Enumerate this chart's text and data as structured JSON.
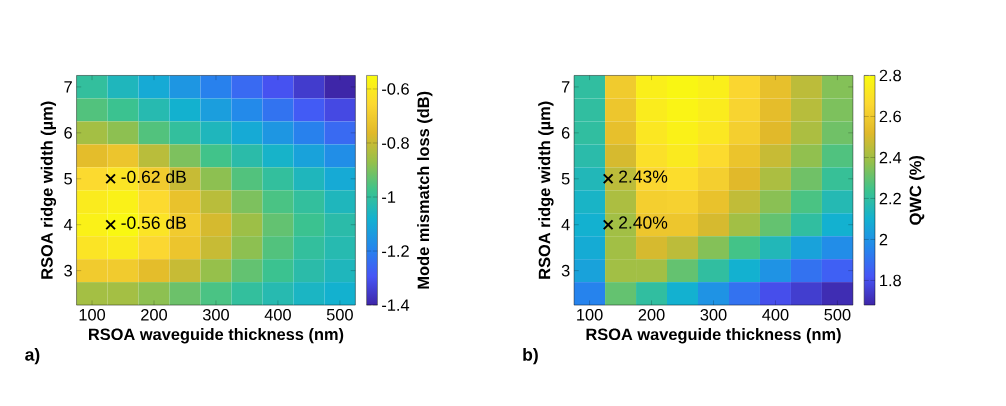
{
  "chart_data": [
    {
      "type": "heatmap",
      "xlabel": "RSOA waveguide thickness (nm)",
      "ylabel": "RSOA ridge width (µm)",
      "clabel": "Mode mismatch loss (dB)",
      "categories": [
        "100",
        null,
        "200",
        null,
        "300",
        null,
        "400",
        null,
        "500"
      ],
      "y_categories": [
        "7",
        null,
        "6",
        null,
        "5",
        null,
        "4",
        null,
        "3",
        null
      ],
      "cells": [
        [
          -1.0,
          -1.05,
          -1.1,
          -1.15,
          -1.2,
          -1.25,
          -1.3,
          -1.35,
          -1.4
        ],
        [
          -0.95,
          -0.98,
          -1.03,
          -1.08,
          -1.13,
          -1.18,
          -1.23,
          -1.28,
          -1.32
        ],
        [
          -0.85,
          -0.88,
          -0.95,
          -1.0,
          -1.05,
          -1.1,
          -1.15,
          -1.2,
          -1.25
        ],
        [
          -0.75,
          -0.72,
          -0.82,
          -0.9,
          -0.97,
          -1.02,
          -1.07,
          -1.12,
          -1.17
        ],
        [
          -0.65,
          -0.62,
          -0.7,
          -0.8,
          -0.88,
          -0.95,
          -1.0,
          -1.05,
          -1.1
        ],
        [
          -0.6,
          -0.58,
          -0.65,
          -0.73,
          -0.82,
          -0.9,
          -0.96,
          -1.0,
          -1.05
        ],
        [
          -0.58,
          -0.56,
          -0.62,
          -0.7,
          -0.78,
          -0.86,
          -0.93,
          -0.98,
          -1.02
        ],
        [
          -0.62,
          -0.6,
          -0.66,
          -0.72,
          -0.8,
          -0.88,
          -0.95,
          -1.0,
          -1.03
        ],
        [
          -0.7,
          -0.7,
          -0.75,
          -0.8,
          -0.87,
          -0.93,
          -0.98,
          -1.02,
          -1.05
        ],
        [
          -0.85,
          -0.85,
          -0.88,
          -0.92,
          -0.96,
          -1.0,
          -1.03,
          -1.06,
          -1.08
        ]
      ],
      "clim": [
        -1.4,
        -0.55
      ],
      "cticks": [
        -1.4,
        -1.2,
        -1,
        -0.8,
        -0.6
      ],
      "annotations": [
        "-0.62 dB",
        "-0.56 dB",
        "a)"
      ]
    },
    {
      "type": "heatmap",
      "xlabel": "RSOA waveguide thickness (nm)",
      "ylabel": "RSOA ridge width (µm)",
      "clabel": "QWC (%)",
      "categories": [
        "100",
        null,
        "200",
        null,
        "300",
        null,
        "400",
        null,
        "500"
      ],
      "y_categories": [
        "7",
        null,
        "6",
        null,
        "5",
        null,
        "4",
        null,
        "3",
        null
      ],
      "cells": [
        [
          2.2,
          2.6,
          2.75,
          2.78,
          2.75,
          2.65,
          2.55,
          2.45,
          2.35
        ],
        [
          2.2,
          2.58,
          2.74,
          2.77,
          2.74,
          2.64,
          2.54,
          2.44,
          2.34
        ],
        [
          2.2,
          2.55,
          2.72,
          2.76,
          2.72,
          2.62,
          2.52,
          2.42,
          2.32
        ],
        [
          2.18,
          2.5,
          2.69,
          2.73,
          2.67,
          2.57,
          2.47,
          2.37,
          2.27
        ],
        [
          2.15,
          2.45,
          2.65,
          2.68,
          2.62,
          2.52,
          2.42,
          2.32,
          2.22
        ],
        [
          2.12,
          2.42,
          2.62,
          2.63,
          2.56,
          2.46,
          2.36,
          2.26,
          2.16
        ],
        [
          2.1,
          2.4,
          2.58,
          2.58,
          2.5,
          2.4,
          2.3,
          2.2,
          2.1
        ],
        [
          2.08,
          2.4,
          2.5,
          2.45,
          2.35,
          2.25,
          2.15,
          2.05,
          1.98
        ],
        [
          2.05,
          2.4,
          2.4,
          2.3,
          2.2,
          2.1,
          2.0,
          1.9,
          1.85
        ],
        [
          1.95,
          2.3,
          2.2,
          2.1,
          2.0,
          1.9,
          1.8,
          1.75,
          1.7
        ]
      ],
      "clim": [
        1.68,
        2.8
      ],
      "cticks": [
        1.8,
        2,
        2.2,
        2.4,
        2.6,
        2.8
      ],
      "annotations": [
        "2.43%",
        "2.40%",
        "b)"
      ]
    }
  ]
}
